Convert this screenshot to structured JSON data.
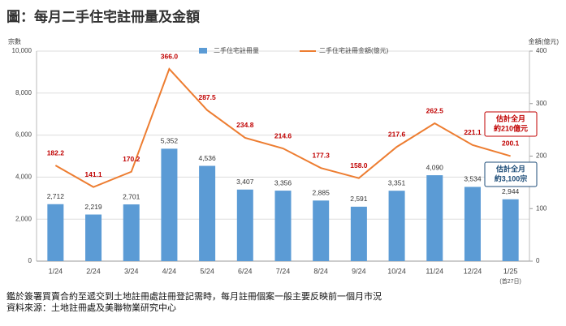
{
  "title": "圖：每月二手住宅註冊量及金額",
  "footnotes": [
    "鑑於簽署買賣合約至遞交到土地註冊處註冊登記需時，每月註冊個案一般主要反映前一個月市況",
    "資料來源：土地註冊處及美聯物業研究中心"
  ],
  "chart_data": {
    "type": "bar-line",
    "y_label": "宗數",
    "y2_label": "金額(億元)",
    "categories": [
      "1/24",
      "2/24",
      "3/24",
      "4/24",
      "5/24",
      "6/24",
      "7/24",
      "8/24",
      "9/24",
      "10/24",
      "11/24",
      "12/24",
      "1/25"
    ],
    "last_category_note": "(首27日)",
    "series": [
      {
        "name": "二手住宅註冊量",
        "type": "bar",
        "color": "#5b9bd5",
        "values": [
          2712,
          2219,
          2701,
          5352,
          4536,
          3407,
          3356,
          2885,
          2591,
          3351,
          4090,
          3534,
          2944
        ],
        "value_labels": [
          "2,712",
          "2,219",
          "2,701",
          "5,352",
          "4,536",
          "3,407",
          "3,356",
          "2,885",
          "2,591",
          "3,351",
          "4,090",
          "3,534",
          "2,944"
        ]
      },
      {
        "name": "二手住宅註冊金額(億元)",
        "type": "line",
        "axis": "y2",
        "color": "#ed7d31",
        "label_color": "#c00000",
        "values": [
          182.2,
          141.1,
          170.2,
          366.0,
          287.5,
          234.8,
          214.6,
          177.3,
          158.0,
          217.6,
          262.5,
          221.1,
          200.1
        ],
        "value_labels": [
          "182.2",
          "141.1",
          "170.2",
          "366.0",
          "287.5",
          "234.8",
          "214.6",
          "177.3",
          "158.0",
          "217.6",
          "262.5",
          "221.1",
          "200.1"
        ]
      }
    ],
    "ylim": [
      0,
      10000
    ],
    "yticks": [
      0,
      {
        "value": 2000,
        "label": "2,000"
      },
      {
        "value": 4000,
        "label": "4,000"
      },
      {
        "value": 6000,
        "label": "6,000"
      },
      {
        "value": 8000,
        "label": "8,000"
      },
      {
        "value": 10000,
        "label": "10,000"
      }
    ],
    "y2lim": [
      0,
      400
    ],
    "y2ticks": [
      0,
      100,
      200,
      300,
      400
    ],
    "grid": true,
    "annotations": [
      {
        "lines": [
          "估計全月",
          "約210億元"
        ],
        "color": "#c00000"
      },
      {
        "lines": [
          "估計全月",
          "約3,100宗"
        ],
        "color": "#1f4e79"
      }
    ]
  }
}
